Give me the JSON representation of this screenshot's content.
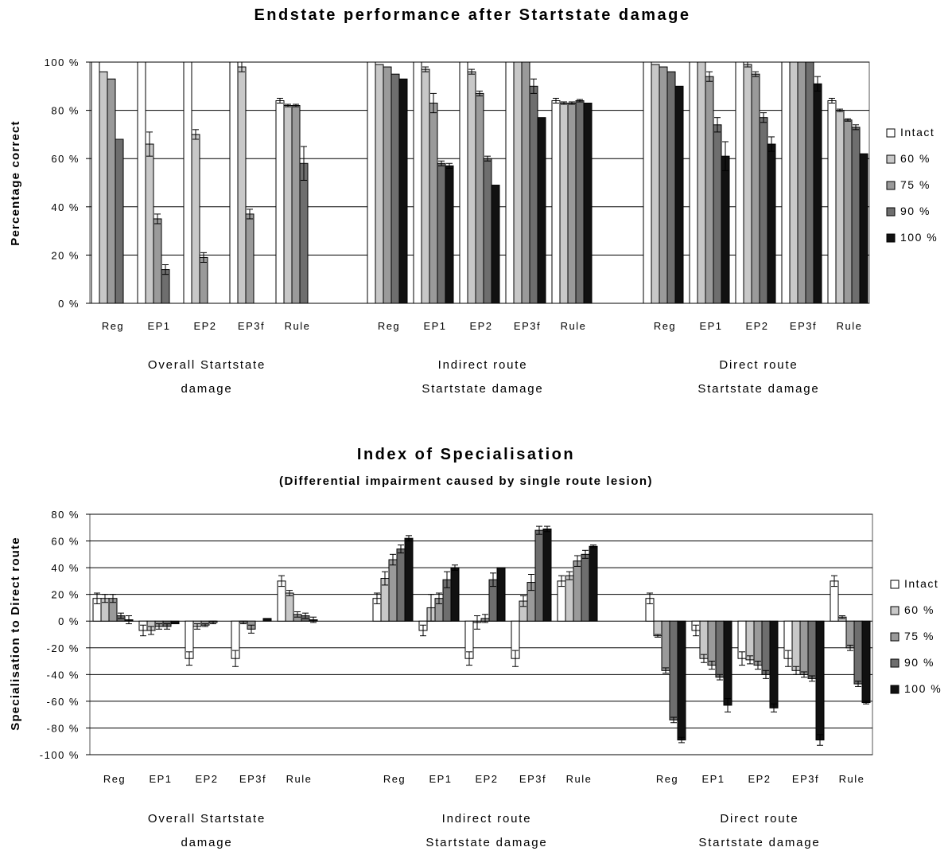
{
  "chart_data": [
    {
      "type": "bar",
      "title": "Endstate performance after Startstate damage",
      "subtitle": "",
      "ylabel": "Percentage correct",
      "ylim": [
        0,
        100
      ],
      "yticks": [
        "0 %",
        "20 %",
        "40 %",
        "60 %",
        "80 %",
        "100 %"
      ],
      "grid": true,
      "legend_position": "right",
      "groups": [
        {
          "label_lines": [
            "Overall Startstate",
            "damage"
          ],
          "categories": [
            "Reg",
            "EP1",
            "EP2",
            "EP3f",
            "Rule"
          ]
        },
        {
          "label_lines": [
            "Indirect route",
            "Startstate damage"
          ],
          "categories": [
            "Reg",
            "EP1",
            "EP2",
            "EP3f",
            "Rule"
          ]
        },
        {
          "label_lines": [
            "Direct route",
            "Startstate damage"
          ],
          "categories": [
            "Reg",
            "EP1",
            "EP2",
            "EP3f",
            "Rule"
          ]
        }
      ],
      "series": [
        {
          "name": "Intact",
          "color": "#ffffff",
          "values": [
            [
              100,
              100,
              100,
              100,
              84
            ],
            [
              100,
              100,
              100,
              100,
              84
            ],
            [
              100,
              100,
              100,
              100,
              84
            ]
          ],
          "errors": [
            [
              0,
              0,
              0,
              0,
              1
            ],
            [
              0,
              0,
              0,
              0,
              1
            ],
            [
              0,
              0,
              0,
              0,
              1
            ]
          ]
        },
        {
          "name": "60 %",
          "color": "#c8c8c8",
          "values": [
            [
              96,
              66,
              70,
              98,
              82
            ],
            [
              99,
              97,
              96,
              100,
              83
            ],
            [
              99,
              100,
              99,
              100,
              80
            ]
          ],
          "errors": [
            [
              0,
              5,
              2,
              2,
              0.5
            ],
            [
              0,
              1,
              1,
              0,
              0.5
            ],
            [
              0,
              0,
              1,
              0,
              0.5
            ]
          ]
        },
        {
          "name": "75 %",
          "color": "#9a9a9a",
          "values": [
            [
              93,
              35,
              19,
              37,
              82
            ],
            [
              98,
              83,
              87,
              100,
              83
            ],
            [
              98,
              94,
              95,
              100,
              76
            ]
          ],
          "errors": [
            [
              0,
              2,
              2,
              2,
              0.5
            ],
            [
              0,
              4,
              1,
              0,
              0.5
            ],
            [
              0,
              2,
              1,
              0,
              0.5
            ]
          ]
        },
        {
          "name": "90 %",
          "color": "#6e6e6e",
          "values": [
            [
              68,
              14,
              0,
              0,
              58
            ],
            [
              95,
              58,
              60,
              90,
              84
            ],
            [
              96,
              74,
              77,
              100,
              73
            ]
          ],
          "errors": [
            [
              0,
              2,
              0,
              0,
              7
            ],
            [
              0,
              1,
              1,
              3,
              0.5
            ],
            [
              0,
              3,
              2,
              0,
              1
            ]
          ]
        },
        {
          "name": "100 %",
          "color": "#111111",
          "values": [
            [
              0,
              0,
              0,
              0,
              0
            ],
            [
              93,
              57,
              49,
              77,
              83
            ],
            [
              90,
              61,
              66,
              91,
              62
            ]
          ],
          "errors": [
            [
              0,
              0,
              0,
              0,
              0
            ],
            [
              0,
              1,
              0,
              0,
              0
            ],
            [
              0,
              6,
              3,
              3,
              0
            ]
          ]
        }
      ]
    },
    {
      "type": "bar",
      "title": "Index of Specialisation",
      "subtitle": "(Differential impairment caused by single route lesion)",
      "ylabel": "Specialisation to Direct route",
      "ylim": [
        -100,
        80
      ],
      "yticks": [
        "-100 %",
        "-80 %",
        "-60 %",
        "-40 %",
        "-20 %",
        "0 %",
        "20 %",
        "40 %",
        "60 %",
        "80 %"
      ],
      "grid": true,
      "legend_position": "right",
      "groups": [
        {
          "label_lines": [
            "Overall Startstate",
            "damage"
          ],
          "categories": [
            "Reg",
            "EP1",
            "EP2",
            "EP3f",
            "Rule"
          ]
        },
        {
          "label_lines": [
            "Indirect route",
            "Startstate damage"
          ],
          "categories": [
            "Reg",
            "EP1",
            "EP2",
            "EP3f",
            "Rule"
          ]
        },
        {
          "label_lines": [
            "Direct route",
            "Startstate damage"
          ],
          "categories": [
            "Reg",
            "EP1",
            "EP2",
            "EP3f",
            "Rule"
          ]
        }
      ],
      "series": [
        {
          "name": "Intact",
          "color": "#ffffff",
          "values": [
            [
              17,
              -7,
              -28,
              -28,
              30
            ],
            [
              17,
              -7,
              -28,
              -28,
              30
            ],
            [
              17,
              -7,
              -28,
              -28,
              30
            ]
          ],
          "errors": [
            [
              4,
              4,
              5,
              6,
              4
            ],
            [
              4,
              4,
              5,
              6,
              4
            ],
            [
              4,
              4,
              5,
              6,
              4
            ]
          ]
        },
        {
          "name": "60 %",
          "color": "#c8c8c8",
          "values": [
            [
              17,
              -7,
              -4,
              -1,
              21
            ],
            [
              32,
              10,
              -1,
              15,
              34
            ],
            [
              -11,
              -28,
              -29,
              -37,
              3
            ]
          ],
          "errors": [
            [
              3,
              3,
              2,
              1,
              2
            ],
            [
              5,
              10,
              5,
              4,
              3
            ],
            [
              1,
              3,
              3,
              3,
              1
            ]
          ]
        },
        {
          "name": "75 %",
          "color": "#9a9a9a",
          "values": [
            [
              17,
              -4,
              -3,
              -6,
              5
            ],
            [
              46,
              17,
              2,
              29,
              45
            ],
            [
              -37,
              -33,
              -33,
              -40,
              -20
            ]
          ],
          "errors": [
            [
              3,
              2,
              1,
              3,
              2
            ],
            [
              4,
              4,
              3,
              6,
              4
            ],
            [
              2,
              3,
              3,
              2,
              2
            ]
          ]
        },
        {
          "name": "90 %",
          "color": "#6e6e6e",
          "values": [
            [
              4,
              -4,
              -1,
              0,
              4
            ],
            [
              54,
              31,
              31,
              68,
              50
            ],
            [
              -74,
              -42,
              -40,
              -43,
              -47
            ]
          ],
          "errors": [
            [
              2,
              2,
              1,
              0,
              2
            ],
            [
              3,
              6,
              5,
              3,
              3
            ],
            [
              2,
              2,
              3,
              2,
              2
            ]
          ]
        },
        {
          "name": "100 %",
          "color": "#111111",
          "values": [
            [
              1,
              -2,
              0,
              2,
              1
            ],
            [
              62,
              40,
              40,
              69,
              56
            ],
            [
              -89,
              -63,
              -65,
              -89,
              -61
            ]
          ],
          "errors": [
            [
              3,
              0,
              0,
              0,
              2
            ],
            [
              2,
              2,
              0,
              2,
              1
            ],
            [
              2,
              5,
              3,
              4,
              1
            ]
          ]
        }
      ]
    }
  ]
}
